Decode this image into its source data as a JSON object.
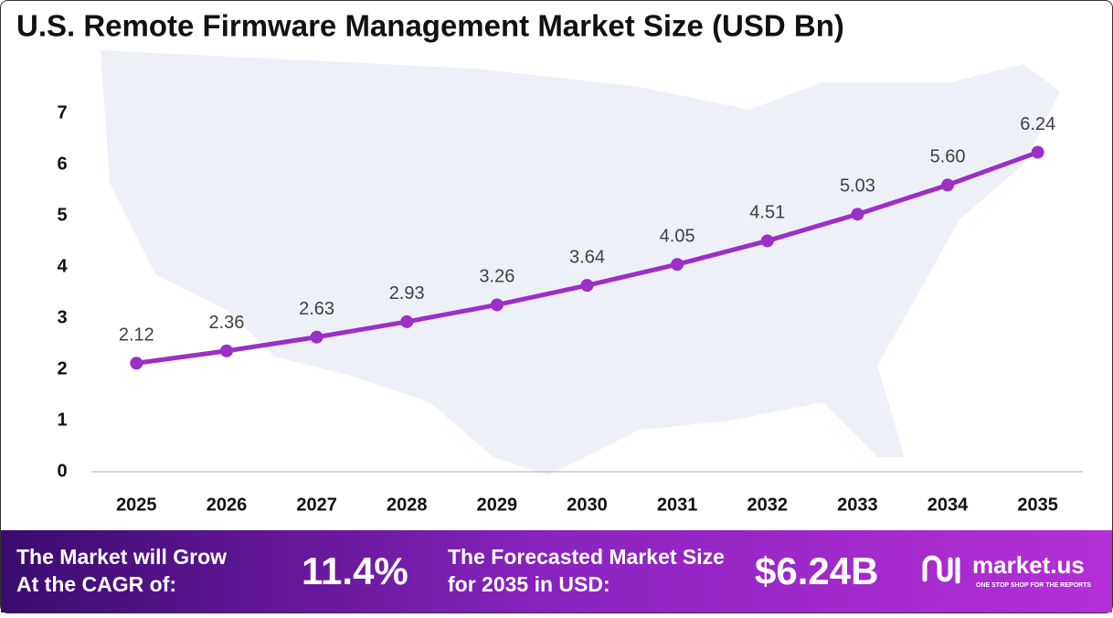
{
  "chart_data": {
    "type": "line",
    "title": "U.S. Remote Firmware Management Market Size (USD Bn)",
    "categories": [
      "2025",
      "2026",
      "2027",
      "2028",
      "2029",
      "2030",
      "2031",
      "2032",
      "2033",
      "2034",
      "2035"
    ],
    "series": [
      {
        "name": "Market Size",
        "color": "#9b2fc6",
        "values": [
          2.12,
          2.36,
          2.63,
          2.93,
          3.26,
          3.64,
          4.05,
          4.51,
          5.03,
          5.6,
          6.24
        ],
        "value_labels": [
          "2.12",
          "2.36",
          "2.63",
          "2.93",
          "3.26",
          "3.64",
          "4.05",
          "4.51",
          "5.03",
          "5.60",
          "6.24"
        ]
      }
    ],
    "ylim": [
      0,
      7
    ],
    "yticks": [
      0,
      1,
      2,
      3,
      4,
      5,
      6,
      7
    ],
    "grid": false
  },
  "footer": {
    "cagr_text": "The Market will Grow At the CAGR of:",
    "cagr_value": "11.4%",
    "forecast_text": "The Forecasted Market Size for 2035 in USD:",
    "forecast_value": "$6.24B",
    "brand": "market.us",
    "tagline": "ONE STOP SHOP FOR THE REPORTS"
  }
}
